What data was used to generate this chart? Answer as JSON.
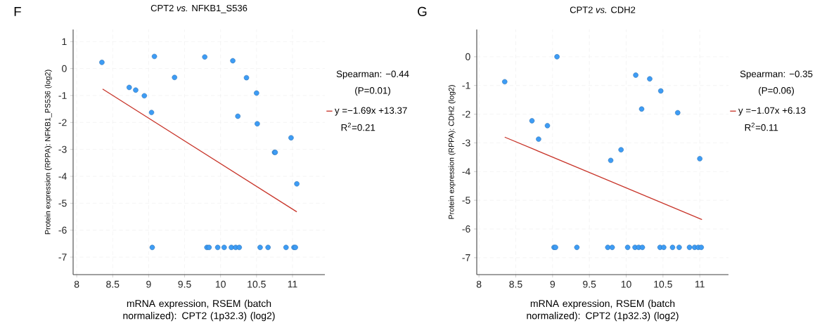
{
  "chart_data": [
    {
      "type": "scatter",
      "title": "CPT2 *vs.* NFKB1_S536",
      "xlabel": "mRNA expression, RSEM (batch normalized): CPT2 (1p32.3) (log2)",
      "ylabel": "Protein expression (RPPA): NFKB1_PS536 (log2)",
      "annotations": [
        "F",
        "Spearman: −0.44",
        "(P=0.01)",
        "R$^{2}$=0.21"
      ],
      "xlim": [
        7.95,
        11.45
      ],
      "ylim": [
        -7.65,
        1.45
      ],
      "xticks": [
        8,
        8.5,
        9,
        9.5,
        10,
        10.5,
        11
      ],
      "yticks": [
        -7,
        -6,
        -5,
        -4,
        -3,
        -2,
        -1,
        0,
        1
      ],
      "grid": true,
      "legend": "right",
      "series": [
        {
          "type": "scatter",
          "marker": "circle",
          "color": "#3d9cf5",
          "x": [
            8.35,
            8.73,
            8.82,
            8.94,
            9.04,
            9.08,
            9.05,
            9.36,
            9.78,
            10.17,
            10.36,
            10.5,
            10.24,
            10.51,
            10.75,
            10.76,
            10.98,
            11.06,
            9.81,
            9.84,
            9.96,
            10.05,
            10.15,
            10.21,
            10.26,
            10.55,
            10.66,
            10.91,
            11.02,
            11.04
          ],
          "values": [
            0.23,
            -0.7,
            -0.8,
            -1.01,
            -1.63,
            0.45,
            -6.64,
            -0.33,
            0.43,
            0.29,
            -0.34,
            -0.91,
            -1.77,
            -2.05,
            -3.11,
            -3.11,
            -2.57,
            -4.28,
            -6.64,
            -6.64,
            -6.64,
            -6.64,
            -6.64,
            -6.64,
            -6.64,
            -6.64,
            -6.64,
            -6.64,
            -6.64,
            -6.64
          ]
        },
        {
          "type": "line",
          "marker": "none",
          "name": "y =−1.69x +13.37",
          "color": "#c8352a",
          "x": [
            8.36,
            11.06
          ],
          "values": [
            -0.76,
            -5.32
          ]
        }
      ]
    },
    {
      "type": "scatter",
      "title": "CPT2 *vs.* CDH2",
      "xlabel": "mRNA expression, RSEM (batch normalized): CPT2 (1p32.3) (log2)",
      "ylabel": "Protein expression (RPPA): CDH2 (log2)",
      "annotations": [
        "G",
        "Spearman: −0.35",
        "(P=0.06)",
        "R$^{2}$=0.11"
      ],
      "xlim": [
        7.97,
        11.39
      ],
      "ylim": [
        -7.59,
        0.95
      ],
      "xticks": [
        8,
        8.5,
        9,
        9.5,
        10,
        10.5,
        11
      ],
      "yticks": [
        -7,
        -6,
        -5,
        -4,
        -3,
        -2,
        -1,
        0
      ],
      "grid": true,
      "legend": "right",
      "series": [
        {
          "type": "scatter",
          "marker": "circle",
          "color": "#3d9cf5",
          "x": [
            8.35,
            9.06,
            8.72,
            8.81,
            8.93,
            10.13,
            10.32,
            10.47,
            10.21,
            10.7,
            9.93,
            9.79,
            11.0,
            9.02,
            9.04,
            9.33,
            9.75,
            9.81,
            10.02,
            10.12,
            10.17,
            10.22,
            10.46,
            10.51,
            10.63,
            10.72,
            10.86,
            10.93,
            10.98,
            11.02
          ],
          "values": [
            -0.87,
            0.0,
            -2.23,
            -2.87,
            -2.4,
            -0.64,
            -0.77,
            -1.19,
            -1.82,
            -1.95,
            -3.24,
            -3.61,
            -3.55,
            -6.64,
            -6.64,
            -6.64,
            -6.64,
            -6.64,
            -6.64,
            -6.64,
            -6.64,
            -6.64,
            -6.64,
            -6.64,
            -6.64,
            -6.64,
            -6.64,
            -6.64,
            -6.64,
            -6.64
          ]
        },
        {
          "type": "line",
          "marker": "none",
          "name": "y =−1.07x +6.13",
          "color": "#c8352a",
          "x": [
            8.35,
            11.03
          ],
          "values": [
            -2.8,
            -5.67
          ]
        }
      ]
    }
  ]
}
